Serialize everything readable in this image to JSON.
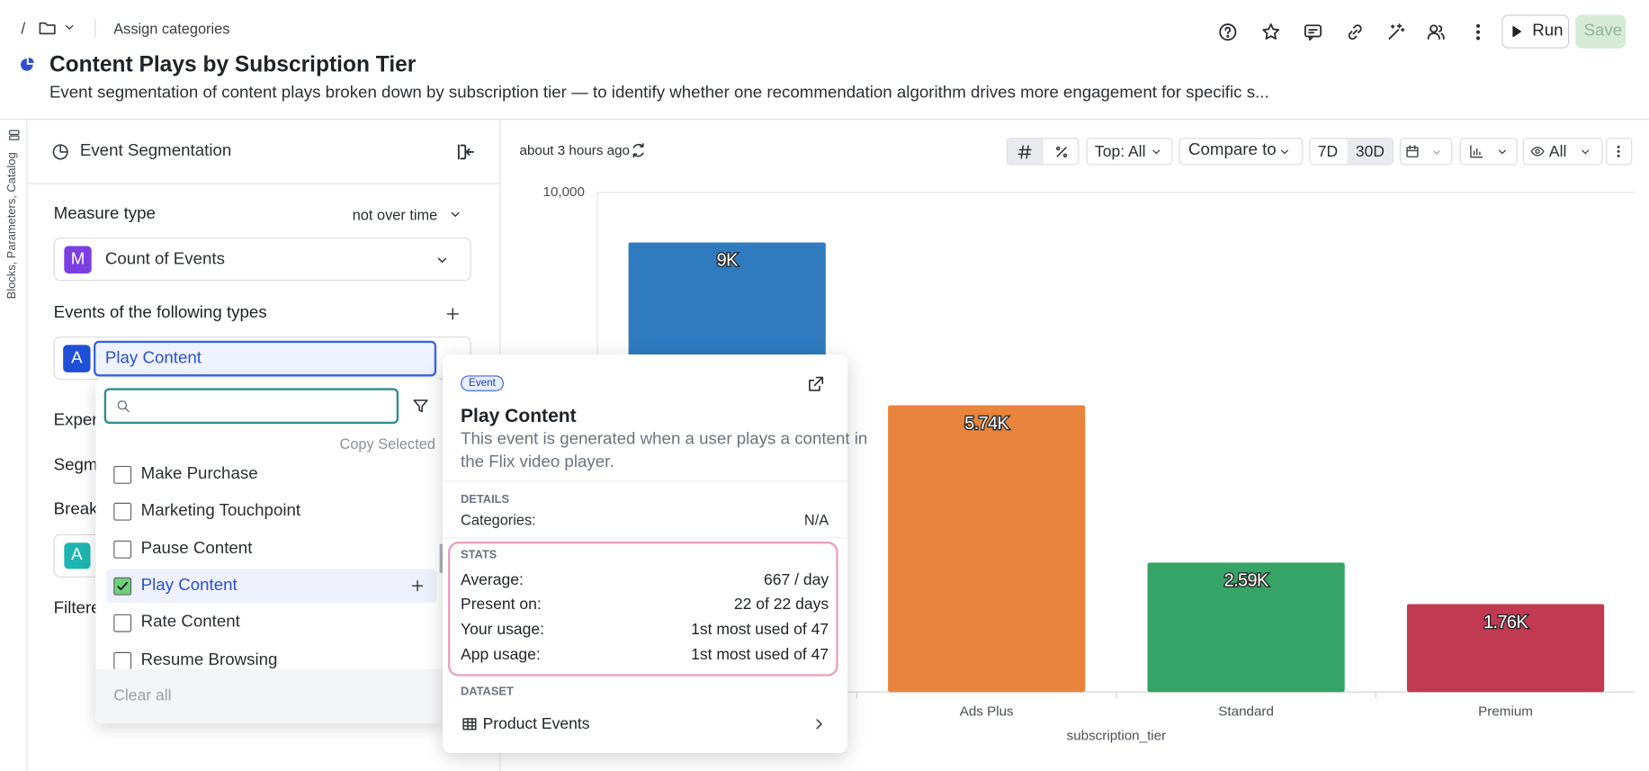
{
  "breadcrumb": {
    "separator": "/",
    "link": "Assign categories"
  },
  "toolbar": {
    "run": "Run",
    "save": "Save"
  },
  "header": {
    "title": "Content Plays by Subscription Tier",
    "description": "Event segmentation of content plays broken down by subscription tier — to identify whether one recommendation algorithm drives more engagement for specific s..."
  },
  "sidebar_tab": "Blocks, Parameters, Catalog",
  "panel": {
    "title": "Event Segmentation",
    "measure_label": "Measure type",
    "measure_mode": "not over time",
    "measure_badge": "M",
    "measure_value": "Count of Events",
    "events_label": "Events of the following types",
    "event_badge": "A",
    "event_value": "Play Content",
    "hidden_labels": [
      "Experi",
      "Segme",
      "Breake",
      "Filtere"
    ],
    "breakdown_badge": "A"
  },
  "dropdown": {
    "copy": "Copy Selected",
    "items": [
      {
        "label": "Make Purchase",
        "checked": false
      },
      {
        "label": "Marketing Touchpoint",
        "checked": false
      },
      {
        "label": "Pause Content",
        "checked": false
      },
      {
        "label": "Play Content",
        "checked": true
      },
      {
        "label": "Rate Content",
        "checked": false
      },
      {
        "label": "Resume Browsing",
        "checked": false
      }
    ],
    "clear": "Clear all"
  },
  "popover": {
    "tag": "Event",
    "title": "Play Content",
    "description": [
      "This event is generated when a user plays a content in",
      "the Flix video player."
    ],
    "details_heading": "DETAILS",
    "details": [
      {
        "label": "Categories:",
        "value": "N/A"
      }
    ],
    "stats_heading": "STATS",
    "stats": [
      {
        "label": "Average:",
        "value": "667 / day"
      },
      {
        "label": "Present on:",
        "value": "22 of 22 days"
      },
      {
        "label": "Your usage:",
        "value": "1st most used of 47"
      },
      {
        "label": "App usage:",
        "value": "1st most used of 47"
      }
    ],
    "dataset_heading": "DATASET",
    "dataset": "Product Events"
  },
  "chart_toolbar": {
    "updated": "about 3 hours ago",
    "top": "Top: All",
    "compare": "Compare to",
    "range_7d": "7D",
    "range_30d": "30D",
    "visibility": "All"
  },
  "chart_data": {
    "type": "bar",
    "categories": [
      null,
      "Ads Plus",
      "Standard",
      "Premium"
    ],
    "values": [
      9000,
      5740,
      2590,
      1760
    ],
    "value_labels": [
      "9K",
      "5.74K",
      "2.59K",
      "1.76K"
    ],
    "colors": [
      "#2f7bbf",
      "#e8843c",
      "#35a466",
      "#c13a52"
    ],
    "x_label": "subscription_tier",
    "ylim": [
      0,
      10000
    ],
    "yticks": [
      {
        "value": 10000,
        "label": "10,000"
      }
    ]
  }
}
